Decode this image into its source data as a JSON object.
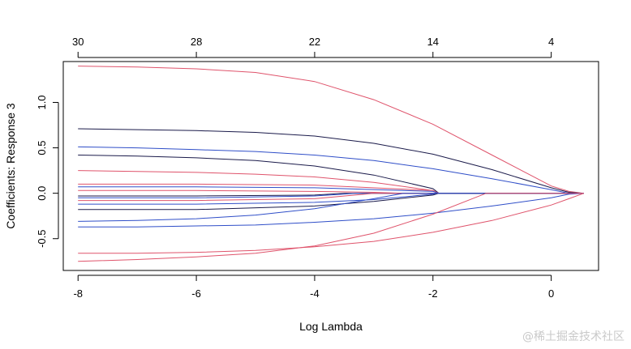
{
  "chart_data": {
    "type": "line",
    "xlabel": "Log Lambda",
    "ylabel": "Coefficients: Response 3",
    "xlim": [
      -8.25,
      0.8
    ],
    "ylim": [
      -0.85,
      1.45
    ],
    "x_ticks": [
      -8,
      -6,
      -4,
      -2,
      0
    ],
    "y_ticks": [
      -0.5,
      0.0,
      0.5,
      1.0
    ],
    "y_tick_labels": [
      "-0.5",
      "0.0",
      "0.5",
      "1.0"
    ],
    "top_axis": {
      "positions": [
        -8,
        -6,
        -4,
        -2,
        0
      ],
      "labels": [
        "30",
        "28",
        "22",
        "14",
        "4"
      ]
    },
    "grid": false,
    "series": [
      {
        "color": "#df536b",
        "x": [
          -8,
          -7,
          -6,
          -5,
          -4,
          -3,
          -2,
          -1,
          0,
          0.3,
          0.55
        ],
        "y": [
          1.4,
          1.39,
          1.37,
          1.33,
          1.23,
          1.03,
          0.76,
          0.42,
          0.08,
          0.02,
          0
        ]
      },
      {
        "color": "#1a1a4a",
        "x": [
          -8,
          -7,
          -6,
          -5,
          -4,
          -3,
          -2,
          -1,
          0,
          0.3,
          0.55
        ],
        "y": [
          0.71,
          0.7,
          0.69,
          0.67,
          0.63,
          0.55,
          0.43,
          0.26,
          0.06,
          0.01,
          0
        ]
      },
      {
        "color": "#2f4ec8",
        "x": [
          -8,
          -7,
          -6,
          -5,
          -4,
          -3,
          -2,
          -1,
          0,
          0.3,
          0.55
        ],
        "y": [
          0.51,
          0.5,
          0.48,
          0.46,
          0.42,
          0.36,
          0.27,
          0.16,
          0.04,
          0,
          0
        ]
      },
      {
        "color": "#1a1a4a",
        "x": [
          -8,
          -7,
          -6,
          -5,
          -4,
          -3,
          -2,
          -1.9,
          0.55
        ],
        "y": [
          0.42,
          0.41,
          0.39,
          0.36,
          0.3,
          0.2,
          0.05,
          0,
          0
        ]
      },
      {
        "color": "#df536b",
        "x": [
          -8,
          -7,
          -6,
          -5,
          -4,
          -3,
          -2,
          -1.9,
          0.55
        ],
        "y": [
          0.25,
          0.24,
          0.23,
          0.21,
          0.18,
          0.12,
          0.03,
          0,
          0
        ]
      },
      {
        "color": "#df536b",
        "x": [
          -8,
          -6,
          -4,
          -2,
          -1.9,
          0.55
        ],
        "y": [
          0.1,
          0.1,
          0.09,
          0.03,
          0,
          0
        ]
      },
      {
        "color": "#2f4ec8",
        "x": [
          -8,
          -6,
          -4,
          -2,
          -1.9,
          0.55
        ],
        "y": [
          0.07,
          0.07,
          0.06,
          0.02,
          0,
          0
        ]
      },
      {
        "color": "#df536b",
        "x": [
          -8,
          -6,
          -4,
          -3,
          -2.5,
          0.55
        ],
        "y": [
          0.03,
          0.03,
          0.02,
          0.01,
          0,
          0
        ]
      },
      {
        "color": "#1a1a4a",
        "x": [
          -8,
          -6,
          -4,
          -3.5,
          0.55
        ],
        "y": [
          -0.03,
          -0.03,
          -0.02,
          0,
          0
        ]
      },
      {
        "color": "#2f4ec8",
        "x": [
          -8,
          -6,
          -4,
          -3.3,
          0.55
        ],
        "y": [
          -0.05,
          -0.05,
          -0.03,
          0,
          0
        ]
      },
      {
        "color": "#df536b",
        "x": [
          -8,
          -6,
          -4,
          -3,
          0.55
        ],
        "y": [
          -0.08,
          -0.08,
          -0.06,
          0,
          0
        ]
      },
      {
        "color": "#2f4ec8",
        "x": [
          -8,
          -6,
          -4,
          -3,
          -2,
          -1.9,
          0.55
        ],
        "y": [
          -0.12,
          -0.12,
          -0.1,
          -0.07,
          -0.01,
          0,
          0
        ]
      },
      {
        "color": "#1a1a4a",
        "x": [
          -8,
          -6,
          -4,
          -3,
          -2,
          -1.9,
          0.55
        ],
        "y": [
          -0.18,
          -0.18,
          -0.14,
          -0.09,
          -0.02,
          0,
          0
        ]
      },
      {
        "color": "#2f4ec8",
        "x": [
          -8,
          -7,
          -6,
          -5,
          -4,
          -3,
          -2.5,
          0.55
        ],
        "y": [
          -0.31,
          -0.3,
          -0.28,
          -0.24,
          -0.17,
          -0.06,
          0,
          0
        ]
      },
      {
        "color": "#2f4ec8",
        "x": [
          -8,
          -7,
          -6,
          -5,
          -4,
          -3,
          -2,
          -1,
          0,
          0.3,
          0.55
        ],
        "y": [
          -0.37,
          -0.37,
          -0.36,
          -0.35,
          -0.32,
          -0.28,
          -0.22,
          -0.14,
          -0.05,
          -0.01,
          0
        ]
      },
      {
        "color": "#df536b",
        "x": [
          -8,
          -7,
          -6,
          -5,
          -4,
          -3,
          -2,
          -1.1,
          0.55
        ],
        "y": [
          -0.75,
          -0.73,
          -0.7,
          -0.66,
          -0.58,
          -0.44,
          -0.23,
          0,
          0
        ]
      },
      {
        "color": "#df536b",
        "x": [
          -8,
          -7,
          -6,
          -5,
          -4,
          -3,
          -2,
          -1,
          0,
          0.3,
          0.55
        ],
        "y": [
          -0.66,
          -0.66,
          -0.65,
          -0.63,
          -0.59,
          -0.53,
          -0.43,
          -0.3,
          -0.13,
          -0.06,
          0
        ]
      }
    ]
  },
  "watermark": "@稀土掘金技术社区"
}
